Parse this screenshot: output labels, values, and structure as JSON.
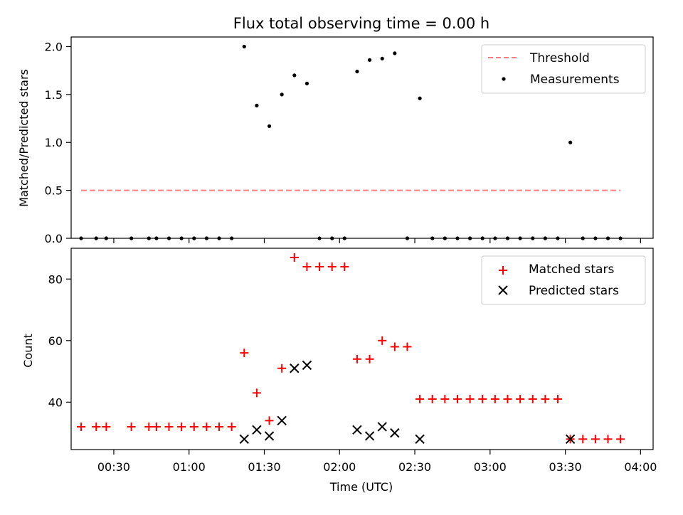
{
  "chart_data": [
    {
      "type": "scatter",
      "title": "Flux total observing time = 0.00 h",
      "ylabel": "Matched/Predicted stars",
      "xlabel": "",
      "ylim": [
        0,
        2.1
      ],
      "xlim": [
        "00:13",
        "04:05"
      ],
      "yticks": [
        "0.0",
        "0.5",
        "1.0",
        "1.5",
        "2.0"
      ],
      "yticks_values": [
        0,
        0.5,
        1.0,
        1.5,
        2.0
      ],
      "legend_position": "upper-right",
      "series": [
        {
          "name": "Threshold",
          "kind": "dashed-line",
          "color": "#ff7f7f",
          "x": [
            "00:17",
            "03:52"
          ],
          "y": [
            0.5,
            0.5
          ]
        },
        {
          "name": "Measurements",
          "kind": "points",
          "color": "#000000",
          "x": [
            "00:17",
            "00:23",
            "00:27",
            "00:37",
            "00:44",
            "00:47",
            "00:52",
            "00:57",
            "01:02",
            "01:07",
            "01:12",
            "01:17",
            "01:22",
            "01:27",
            "01:32",
            "01:37",
            "01:42",
            "01:47",
            "01:52",
            "01:57",
            "02:02",
            "02:07",
            "02:12",
            "02:17",
            "02:22",
            "02:27",
            "02:32",
            "02:37",
            "02:42",
            "02:47",
            "02:52",
            "02:57",
            "03:02",
            "03:07",
            "03:12",
            "03:17",
            "03:22",
            "03:27",
            "03:32",
            "03:37",
            "03:42",
            "03:47",
            "03:52"
          ],
          "y": [
            0,
            0,
            0,
            0,
            0,
            0,
            0,
            0,
            0,
            0,
            0,
            0,
            2.0,
            1.385,
            1.17,
            1.5,
            1.7,
            1.615,
            0,
            0,
            0,
            1.74,
            1.86,
            1.875,
            1.93,
            0,
            1.46,
            0,
            0,
            0,
            0,
            0,
            0,
            0,
            0,
            0,
            0,
            0,
            1.0,
            0,
            0,
            0,
            0
          ]
        }
      ]
    },
    {
      "type": "scatter",
      "title": "",
      "xlabel": "Time (UTC)",
      "ylabel": "Count",
      "ylim": [
        24.6,
        90
      ],
      "xlim": [
        "00:13",
        "04:05"
      ],
      "xticks": [
        "00:30",
        "01:00",
        "01:30",
        "02:00",
        "02:30",
        "03:00",
        "03:30",
        "04:00"
      ],
      "yticks": [
        "40",
        "60",
        "80"
      ],
      "yticks_values": [
        40,
        60,
        80
      ],
      "legend_position": "upper-right",
      "series": [
        {
          "name": "Matched stars",
          "marker": "plus",
          "color": "#ff0000",
          "x": [
            "00:17",
            "00:23",
            "00:27",
            "00:37",
            "00:44",
            "00:47",
            "00:52",
            "00:57",
            "01:02",
            "01:07",
            "01:12",
            "01:17",
            "01:22",
            "01:27",
            "01:32",
            "01:37",
            "01:42",
            "01:47",
            "01:52",
            "01:57",
            "02:02",
            "02:07",
            "02:12",
            "02:17",
            "02:22",
            "02:27",
            "02:32",
            "02:37",
            "02:42",
            "02:47",
            "02:52",
            "02:57",
            "03:02",
            "03:07",
            "03:12",
            "03:17",
            "03:22",
            "03:27",
            "03:32",
            "03:37",
            "03:42",
            "03:47",
            "03:52"
          ],
          "y": [
            32,
            32,
            32,
            32,
            32,
            32,
            32,
            32,
            32,
            32,
            32,
            32,
            56,
            43,
            34,
            51,
            87,
            84,
            84,
            84,
            84,
            54,
            54,
            60,
            58,
            58,
            41,
            41,
            41,
            41,
            41,
            41,
            41,
            41,
            41,
            41,
            41,
            41,
            28,
            28,
            28,
            28,
            28
          ]
        },
        {
          "name": "Predicted stars",
          "marker": "x",
          "color": "#000000",
          "x": [
            "01:22",
            "01:27",
            "01:32",
            "01:37",
            "01:42",
            "01:47",
            "02:07",
            "02:12",
            "02:17",
            "02:22",
            "02:32",
            "03:32"
          ],
          "y": [
            28,
            31,
            29,
            34,
            51,
            52,
            31,
            29,
            32,
            30,
            28,
            28
          ]
        }
      ]
    }
  ]
}
